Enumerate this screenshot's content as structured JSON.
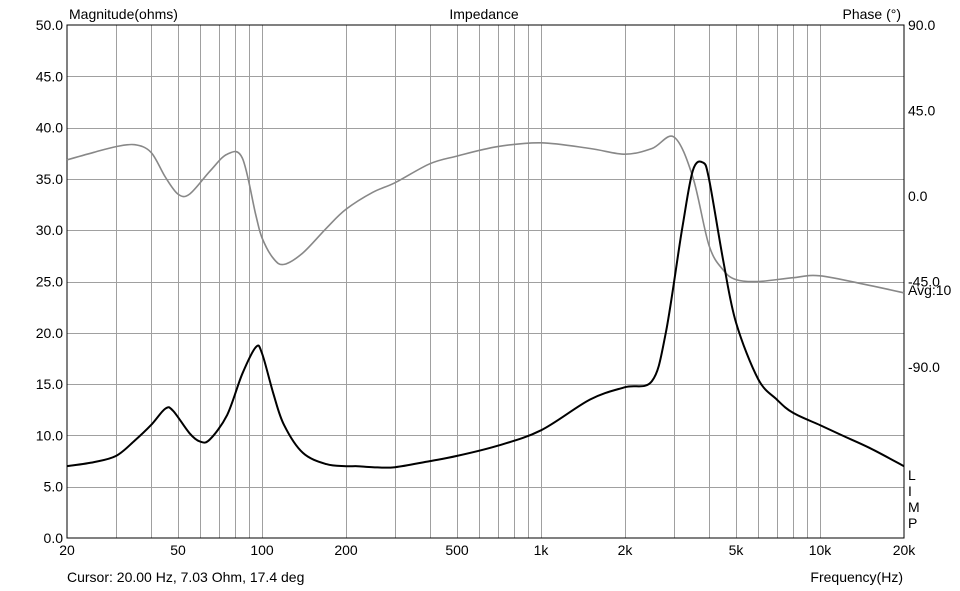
{
  "chart_data": {
    "type": "line",
    "title": "Impedance",
    "y_left_label": "Magnitude(ohms)",
    "y_right_label": "Phase (°)",
    "x_label": "Frequency(Hz)",
    "x_scale": "log",
    "xlim": [
      20,
      20000
    ],
    "ylim_left": [
      0,
      50
    ],
    "ylim_right": [
      -180,
      90
    ],
    "x_ticks": [
      {
        "value": 20,
        "label": "20"
      },
      {
        "value": 50,
        "label": "50"
      },
      {
        "value": 100,
        "label": "100"
      },
      {
        "value": 200,
        "label": "200"
      },
      {
        "value": 500,
        "label": "500"
      },
      {
        "value": 1000,
        "label": "1k"
      },
      {
        "value": 2000,
        "label": "2k"
      },
      {
        "value": 5000,
        "label": "5k"
      },
      {
        "value": 10000,
        "label": "10k"
      },
      {
        "value": 20000,
        "label": "20k"
      }
    ],
    "y_left_ticks": [
      "0.0",
      "5.0",
      "10.0",
      "15.0",
      "20.0",
      "25.0",
      "30.0",
      "35.0",
      "40.0",
      "45.0",
      "50.0"
    ],
    "y_right_ticks": [
      {
        "value": 90,
        "label": "90.0"
      },
      {
        "value": 45,
        "label": "45.0"
      },
      {
        "value": 0,
        "label": "0.0"
      },
      {
        "value": -45,
        "label": "-45.0"
      },
      {
        "value": -90,
        "label": "-90.0"
      }
    ],
    "avg_label": "Avg:10",
    "side_letters": [
      "L",
      "I",
      "M",
      "P"
    ],
    "grid": true,
    "series": [
      {
        "key": "magnitude",
        "axis": "left",
        "color": "#000000",
        "x": [
          20,
          25,
          30,
          35,
          40,
          45,
          48,
          55,
          60,
          65,
          75,
          85,
          95,
          100,
          110,
          120,
          140,
          170,
          200,
          220,
          250,
          300,
          400,
          500,
          700,
          1000,
          1500,
          2000,
          2500,
          2800,
          3200,
          3500,
          3800,
          4000,
          4500,
          5000,
          6000,
          7000,
          8000,
          10000,
          12000,
          15000,
          20000
        ],
        "y": [
          7.0,
          7.4,
          8.0,
          9.5,
          11.0,
          12.6,
          12.4,
          10.2,
          9.4,
          9.6,
          12.0,
          16.0,
          18.6,
          18.0,
          14.0,
          11.0,
          8.3,
          7.2,
          7.0,
          7.0,
          6.9,
          6.9,
          7.5,
          8.0,
          9.0,
          10.5,
          13.5,
          14.7,
          15.3,
          20.0,
          30.0,
          35.8,
          36.6,
          35.0,
          27.0,
          21.0,
          15.5,
          13.5,
          12.2,
          11.0,
          10.0,
          8.8,
          7.0
        ]
      },
      {
        "key": "phase",
        "axis": "right",
        "color": "#888888",
        "x": [
          20,
          25,
          30,
          35,
          40,
          45,
          50,
          55,
          65,
          75,
          85,
          95,
          100,
          110,
          120,
          140,
          170,
          200,
          250,
          300,
          400,
          500,
          700,
          1000,
          1500,
          2000,
          2500,
          3000,
          3500,
          4000,
          4500,
          5000,
          6000,
          8000,
          10000,
          15000,
          20000
        ],
        "y": [
          19,
          23,
          26,
          27,
          23,
          10,
          1,
          1,
          13,
          22,
          20,
          -10,
          -22,
          -33,
          -36,
          -30,
          -17,
          -7,
          2,
          7,
          17,
          21,
          26,
          28,
          25,
          22,
          25,
          31,
          10,
          -26,
          -39,
          -44,
          -45,
          -43,
          -42,
          -47,
          -51
        ]
      }
    ]
  },
  "status": {
    "cursor_text": "Cursor: 20.00 Hz, 7.03 Ohm, 17.4 deg"
  }
}
